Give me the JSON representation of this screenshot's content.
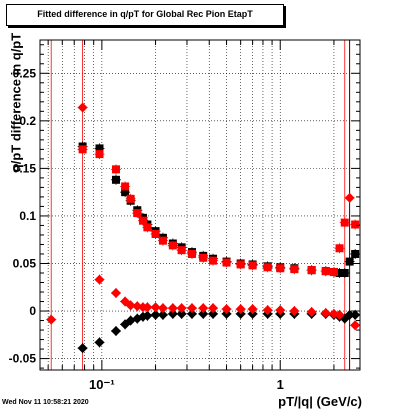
{
  "header": {
    "title": "Fitted difference in q/pT for Global Rec Pion EtapT"
  },
  "footer": {
    "timestamp": "Wed Nov 11 10:58:21 2020"
  },
  "colors": {
    "series_black": "#000000",
    "series_red": "#ff0000",
    "frame": "#000000",
    "grid": "#000000"
  },
  "chart_data": {
    "type": "scatter",
    "title": "Fitted difference in q/pT for Global Rec Pion EtapT",
    "xlabel": "pT/|q| (GeV/c)",
    "ylabel": "q/pT difference in q/pT",
    "xscale": "log",
    "xlim": [
      0.045,
      2.8
    ],
    "ylim": [
      -0.062,
      0.285
    ],
    "grid": true,
    "x_tick_labels": [
      "10⁻¹",
      "1"
    ],
    "y_tick_labels": [
      "-0.05",
      "0",
      "0.05",
      "0.1",
      "0.15",
      "0.2",
      "0.25"
    ],
    "series": [
      {
        "marker": "square",
        "color": "#000000",
        "points": [
          [
            0.078,
            0.173
          ],
          [
            0.097,
            0.171
          ],
          [
            0.12,
            0.138
          ],
          [
            0.135,
            0.125
          ],
          [
            0.145,
            0.116
          ],
          [
            0.158,
            0.106
          ],
          [
            0.17,
            0.098
          ],
          [
            0.18,
            0.091
          ],
          [
            0.2,
            0.084
          ],
          [
            0.22,
            0.077
          ],
          [
            0.25,
            0.071
          ],
          [
            0.28,
            0.067
          ],
          [
            0.32,
            0.062
          ],
          [
            0.37,
            0.058
          ],
          [
            0.42,
            0.055
          ],
          [
            0.5,
            0.052
          ],
          [
            0.6,
            0.05
          ],
          [
            0.7,
            0.049
          ],
          [
            0.85,
            0.047
          ],
          [
            1.0,
            0.046
          ],
          [
            1.2,
            0.045
          ],
          [
            1.5,
            0.043
          ],
          [
            1.8,
            0.042
          ],
          [
            2.0,
            0.041
          ],
          [
            2.15,
            0.04
          ],
          [
            2.3,
            0.04
          ],
          [
            2.45,
            0.052
          ],
          [
            2.63,
            0.06
          ]
        ]
      },
      {
        "marker": "square",
        "color": "#ff0000",
        "points": [
          [
            0.078,
            0.17
          ],
          [
            0.097,
            0.165
          ],
          [
            0.12,
            0.149
          ],
          [
            0.135,
            0.131
          ],
          [
            0.145,
            0.118
          ],
          [
            0.158,
            0.103
          ],
          [
            0.17,
            0.095
          ],
          [
            0.18,
            0.088
          ],
          [
            0.2,
            0.081
          ],
          [
            0.22,
            0.074
          ],
          [
            0.25,
            0.069
          ],
          [
            0.28,
            0.064
          ],
          [
            0.32,
            0.06
          ],
          [
            0.37,
            0.056
          ],
          [
            0.42,
            0.053
          ],
          [
            0.5,
            0.051
          ],
          [
            0.6,
            0.049
          ],
          [
            0.7,
            0.048
          ],
          [
            0.85,
            0.046
          ],
          [
            1.0,
            0.045
          ],
          [
            1.2,
            0.044
          ],
          [
            1.5,
            0.043
          ],
          [
            1.8,
            0.042
          ],
          [
            2.0,
            0.041
          ],
          [
            2.15,
            0.066
          ],
          [
            2.3,
            0.093
          ],
          [
            2.63,
            0.091
          ]
        ]
      },
      {
        "marker": "diamond",
        "color": "#000000",
        "points": [
          [
            0.078,
            -0.039
          ],
          [
            0.097,
            -0.033
          ],
          [
            0.12,
            -0.021
          ],
          [
            0.135,
            -0.014
          ],
          [
            0.145,
            -0.01
          ],
          [
            0.158,
            -0.008
          ],
          [
            0.17,
            -0.006
          ],
          [
            0.18,
            -0.005
          ],
          [
            0.2,
            -0.004
          ],
          [
            0.22,
            -0.004
          ],
          [
            0.25,
            -0.003
          ],
          [
            0.28,
            -0.003
          ],
          [
            0.32,
            -0.003
          ],
          [
            0.37,
            -0.003
          ],
          [
            0.42,
            -0.003
          ],
          [
            0.5,
            -0.003
          ],
          [
            0.6,
            -0.003
          ],
          [
            0.7,
            -0.003
          ],
          [
            0.85,
            -0.003
          ],
          [
            1.0,
            -0.003
          ],
          [
            1.2,
            -0.003
          ],
          [
            1.5,
            -0.003
          ],
          [
            1.8,
            -0.003
          ],
          [
            2.0,
            -0.004
          ],
          [
            2.15,
            -0.006
          ],
          [
            2.3,
            -0.008
          ],
          [
            2.45,
            -0.004
          ],
          [
            2.63,
            -0.004
          ]
        ]
      },
      {
        "marker": "diamond",
        "color": "#ff0000",
        "points": [
          [
            0.052,
            -0.009
          ],
          [
            0.078,
            0.214
          ],
          [
            0.097,
            0.033
          ],
          [
            0.12,
            0.019
          ],
          [
            0.135,
            0.01
          ],
          [
            0.145,
            0.006
          ],
          [
            0.158,
            0.005
          ],
          [
            0.17,
            0.004
          ],
          [
            0.18,
            0.004
          ],
          [
            0.2,
            0.004
          ],
          [
            0.22,
            0.003
          ],
          [
            0.25,
            0.003
          ],
          [
            0.28,
            0.003
          ],
          [
            0.32,
            0.003
          ],
          [
            0.37,
            0.003
          ],
          [
            0.42,
            0.003
          ],
          [
            0.5,
            0.002
          ],
          [
            0.6,
            0.002
          ],
          [
            0.7,
            0.002
          ],
          [
            0.85,
            0.001
          ],
          [
            1.0,
            0.001
          ],
          [
            1.2,
            0.0
          ],
          [
            1.5,
            -0.001
          ],
          [
            1.8,
            -0.002
          ],
          [
            2.0,
            -0.003
          ],
          [
            2.15,
            -0.004
          ],
          [
            2.45,
            0.119
          ],
          [
            2.63,
            -0.015
          ]
        ]
      }
    ]
  }
}
